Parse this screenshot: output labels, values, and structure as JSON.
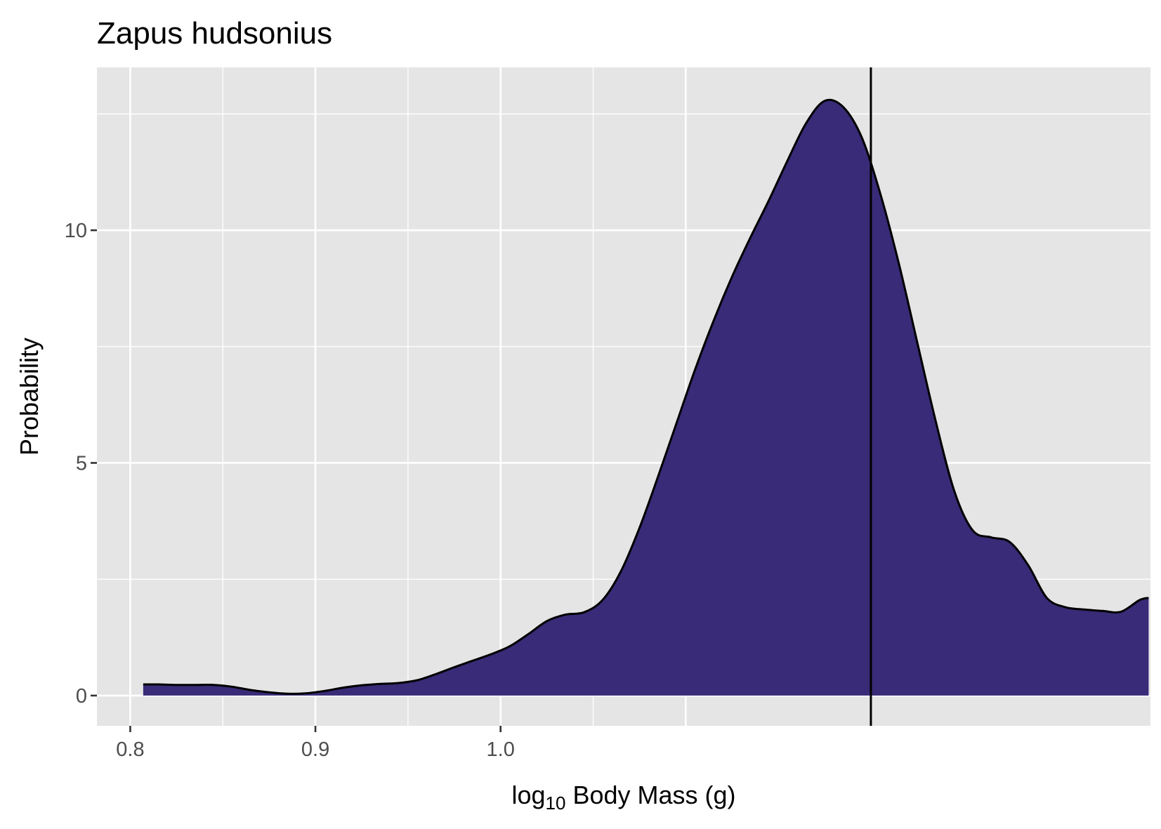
{
  "chart_data": {
    "type": "area",
    "title": "Zapus hudsonius",
    "xlabel_prefix": "log",
    "xlabel_subscript": "10",
    "xlabel_suffix": " Body Mass (g)",
    "ylabel": "Probability",
    "xlim": [
      0.782,
      1.351
    ],
    "ylim": [
      -0.65,
      13.5
    ],
    "x_ticks": [
      0.8,
      0.9,
      1.0
    ],
    "x_tick_labels": [
      "0.8",
      "0.9",
      "1.0"
    ],
    "x_major_grid": [
      0.8,
      0.9,
      1.0,
      1.1
    ],
    "x_minor_grid": [
      0.85,
      0.95,
      1.05
    ],
    "y_ticks": [
      0,
      5,
      10
    ],
    "y_tick_labels": [
      "0",
      "5",
      "10"
    ],
    "y_minor_grid": [
      2.5,
      7.5,
      12.5
    ],
    "fill_color": "#392b77",
    "line_color": "#000000",
    "panel_background": "#e5e5e5",
    "grid_color": "#ffffff",
    "vline_x": 1.2,
    "density": {
      "x": [
        0.807,
        0.815,
        0.825,
        0.835,
        0.845,
        0.855,
        0.865,
        0.875,
        0.885,
        0.895,
        0.905,
        0.915,
        0.925,
        0.935,
        0.945,
        0.955,
        0.965,
        0.975,
        0.985,
        0.995,
        1.005,
        1.015,
        1.025,
        1.035,
        1.045,
        1.055,
        1.065,
        1.075,
        1.085,
        1.095,
        1.105,
        1.115,
        1.125,
        1.135,
        1.145,
        1.155,
        1.165,
        1.175,
        1.185,
        1.195,
        1.205,
        1.215,
        1.225,
        1.235,
        1.245,
        1.255,
        1.265,
        1.275,
        1.285,
        1.295,
        1.305,
        1.315,
        1.325,
        1.335,
        1.345,
        1.35
      ],
      "y": [
        0.24,
        0.24,
        0.23,
        0.23,
        0.23,
        0.19,
        0.12,
        0.07,
        0.04,
        0.05,
        0.1,
        0.17,
        0.22,
        0.25,
        0.27,
        0.33,
        0.46,
        0.61,
        0.75,
        0.89,
        1.06,
        1.32,
        1.6,
        1.74,
        1.79,
        2.05,
        2.67,
        3.6,
        4.7,
        5.85,
        7.0,
        8.05,
        9.0,
        9.85,
        10.65,
        11.5,
        12.3,
        12.78,
        12.65,
        12.0,
        10.8,
        9.3,
        7.6,
        5.9,
        4.4,
        3.55,
        3.4,
        3.3,
        2.8,
        2.1,
        1.9,
        1.85,
        1.82,
        1.8,
        2.05,
        2.1
      ]
    }
  }
}
